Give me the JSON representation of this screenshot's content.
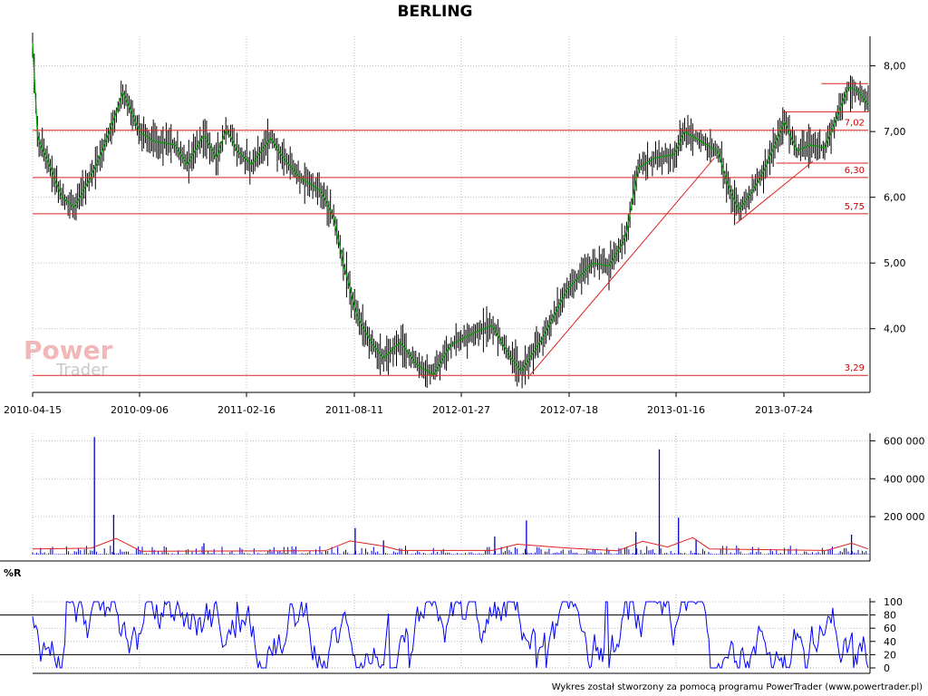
{
  "chart_data": [
    {
      "type": "candlestick",
      "title": "BERLING",
      "x_tick_labels": [
        "2010-04-15",
        "2010-09-06",
        "2011-02-16",
        "2011-08-11",
        "2012-01-27",
        "2012-07-18",
        "2013-01-16",
        "2013-07-24"
      ],
      "y_tick_labels": [
        "4,00",
        "5,00",
        "6,00",
        "7,00",
        "8,00"
      ],
      "y_ticks": [
        4,
        5,
        6,
        7,
        8
      ],
      "ylim": [
        3.1,
        8.45
      ],
      "grid": true,
      "price_path": [
        {
          "t": 0.0,
          "v": 8.35
        },
        {
          "t": 0.006,
          "v": 6.9
        },
        {
          "t": 0.02,
          "v": 6.5
        },
        {
          "t": 0.035,
          "v": 6.0
        },
        {
          "t": 0.05,
          "v": 5.85
        },
        {
          "t": 0.065,
          "v": 6.2
        },
        {
          "t": 0.08,
          "v": 6.6
        },
        {
          "t": 0.095,
          "v": 7.1
        },
        {
          "t": 0.108,
          "v": 7.6
        },
        {
          "t": 0.115,
          "v": 7.4
        },
        {
          "t": 0.128,
          "v": 7.0
        },
        {
          "t": 0.145,
          "v": 6.85
        },
        {
          "t": 0.17,
          "v": 6.8
        },
        {
          "t": 0.185,
          "v": 6.5
        },
        {
          "t": 0.205,
          "v": 6.95
        },
        {
          "t": 0.22,
          "v": 6.6
        },
        {
          "t": 0.232,
          "v": 7.05
        },
        {
          "t": 0.245,
          "v": 6.7
        },
        {
          "t": 0.262,
          "v": 6.5
        },
        {
          "t": 0.285,
          "v": 6.9
        },
        {
          "t": 0.3,
          "v": 6.6
        },
        {
          "t": 0.32,
          "v": 6.3
        },
        {
          "t": 0.345,
          "v": 6.1
        },
        {
          "t": 0.36,
          "v": 5.7
        },
        {
          "t": 0.372,
          "v": 5.0
        },
        {
          "t": 0.388,
          "v": 4.2
        },
        {
          "t": 0.405,
          "v": 3.8
        },
        {
          "t": 0.42,
          "v": 3.55
        },
        {
          "t": 0.44,
          "v": 3.8
        },
        {
          "t": 0.46,
          "v": 3.45
        },
        {
          "t": 0.48,
          "v": 3.3
        },
        {
          "t": 0.5,
          "v": 3.75
        },
        {
          "t": 0.53,
          "v": 3.95
        },
        {
          "t": 0.55,
          "v": 4.05
        },
        {
          "t": 0.57,
          "v": 3.6
        },
        {
          "t": 0.585,
          "v": 3.35
        },
        {
          "t": 0.61,
          "v": 3.85
        },
        {
          "t": 0.64,
          "v": 4.6
        },
        {
          "t": 0.67,
          "v": 5.0
        },
        {
          "t": 0.69,
          "v": 4.95
        },
        {
          "t": 0.71,
          "v": 5.4
        },
        {
          "t": 0.725,
          "v": 6.45
        },
        {
          "t": 0.745,
          "v": 6.6
        },
        {
          "t": 0.768,
          "v": 6.65
        },
        {
          "t": 0.78,
          "v": 7.0
        },
        {
          "t": 0.8,
          "v": 6.85
        },
        {
          "t": 0.82,
          "v": 6.7
        },
        {
          "t": 0.832,
          "v": 6.2
        },
        {
          "t": 0.845,
          "v": 5.8
        },
        {
          "t": 0.862,
          "v": 6.1
        },
        {
          "t": 0.875,
          "v": 6.4
        },
        {
          "t": 0.89,
          "v": 6.85
        },
        {
          "t": 0.9,
          "v": 7.15
        },
        {
          "t": 0.915,
          "v": 6.7
        },
        {
          "t": 0.93,
          "v": 6.8
        },
        {
          "t": 0.948,
          "v": 6.75
        },
        {
          "t": 0.962,
          "v": 7.2
        },
        {
          "t": 0.976,
          "v": 7.68
        },
        {
          "t": 0.988,
          "v": 7.62
        },
        {
          "t": 1.0,
          "v": 7.4
        }
      ],
      "levels": [
        {
          "value": 7.02,
          "label": "7,02",
          "t_from": 0.0,
          "t_to": 1.0
        },
        {
          "value": 6.3,
          "label": "6,30",
          "t_from": 0.0,
          "t_to": 1.0
        },
        {
          "value": 5.75,
          "label": "5,75",
          "t_from": 0.0,
          "t_to": 1.0
        },
        {
          "value": 3.29,
          "label": "3,29",
          "t_from": 0.0,
          "t_to": 1.0
        },
        {
          "value": 7.3,
          "label": "",
          "t_from": 0.898,
          "t_to": 1.0
        },
        {
          "value": 7.73,
          "label": "",
          "t_from": 0.944,
          "t_to": 1.0
        },
        {
          "value": 6.52,
          "label": "",
          "t_from": 0.89,
          "t_to": 1.0
        }
      ],
      "trendlines": [
        {
          "t1": 0.595,
          "v1": 3.29,
          "t2": 0.816,
          "v2": 6.6
        },
        {
          "t1": 0.842,
          "v1": 5.6,
          "t2": 0.934,
          "v2": 6.55
        }
      ],
      "colors": {
        "candle": "#000000",
        "avg_line": "#00a000",
        "levels": "#dd2222",
        "grid": "#bbbbbb"
      }
    },
    {
      "type": "bar",
      "ylabel": "",
      "y_tick_labels": [
        "200 000",
        "400 000",
        "600 000"
      ],
      "y_ticks": [
        200000,
        400000,
        600000
      ],
      "ylim": [
        0,
        640000
      ],
      "spikes": [
        {
          "t": 0.074,
          "v": 620000
        },
        {
          "t": 0.097,
          "v": 210000
        },
        {
          "t": 0.205,
          "v": 60000
        },
        {
          "t": 0.386,
          "v": 140000
        },
        {
          "t": 0.42,
          "v": 75000
        },
        {
          "t": 0.553,
          "v": 95000
        },
        {
          "t": 0.591,
          "v": 180000
        },
        {
          "t": 0.722,
          "v": 120000
        },
        {
          "t": 0.75,
          "v": 555000
        },
        {
          "t": 0.773,
          "v": 195000
        },
        {
          "t": 0.794,
          "v": 80000
        },
        {
          "t": 0.98,
          "v": 105000
        }
      ],
      "average_path": [
        {
          "t": 0.0,
          "v": 30000
        },
        {
          "t": 0.07,
          "v": 34000
        },
        {
          "t": 0.1,
          "v": 85000
        },
        {
          "t": 0.12,
          "v": 40000
        },
        {
          "t": 0.13,
          "v": 18000
        },
        {
          "t": 0.35,
          "v": 20000
        },
        {
          "t": 0.38,
          "v": 72000
        },
        {
          "t": 0.42,
          "v": 45000
        },
        {
          "t": 0.44,
          "v": 22000
        },
        {
          "t": 0.55,
          "v": 22000
        },
        {
          "t": 0.58,
          "v": 55000
        },
        {
          "t": 0.64,
          "v": 35000
        },
        {
          "t": 0.7,
          "v": 20000
        },
        {
          "t": 0.73,
          "v": 70000
        },
        {
          "t": 0.76,
          "v": 40000
        },
        {
          "t": 0.79,
          "v": 90000
        },
        {
          "t": 0.81,
          "v": 30000
        },
        {
          "t": 0.95,
          "v": 22000
        },
        {
          "t": 0.98,
          "v": 60000
        },
        {
          "t": 1.0,
          "v": 30000
        }
      ],
      "colors": {
        "bars": "#0000cc",
        "average": "#dd2222"
      }
    },
    {
      "type": "line",
      "title": "%R",
      "y_tick_labels": [
        "0",
        "20",
        "40",
        "60",
        "80",
        "100"
      ],
      "y_ticks": [
        0,
        20,
        40,
        60,
        80,
        100
      ],
      "ylim": [
        0,
        100
      ],
      "reference_lines": [
        20,
        80
      ],
      "colors": {
        "line": "#0000ff",
        "reference": "#000000"
      }
    }
  ],
  "logo": {
    "word1": "Power",
    "word2": "Trader"
  },
  "footer": "Wykres został stworzony za pomocą programu PowerTrader (www.powertrader.pl)"
}
